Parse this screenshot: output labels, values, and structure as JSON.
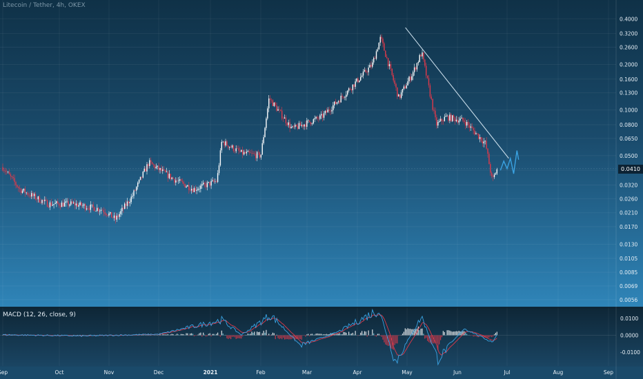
{
  "chart_data": [
    {
      "type": "candlestick",
      "title": "Litecoin / Tether, 4h, OKEX",
      "y_scale": "log",
      "ylim": [
        0.0052,
        0.5
      ],
      "y_ticks": [
        "0.4000",
        "0.3200",
        "0.2600",
        "0.2000",
        "0.1600",
        "0.1300",
        "0.1000",
        "0.0800",
        "0.0650",
        "0.0500",
        "0.0400",
        "0.0320",
        "0.0260",
        "0.0210",
        "0.0170",
        "0.0130",
        "0.0105",
        "0.0085",
        "0.0069",
        "0.0056"
      ],
      "x_ticks": [
        "Sep",
        "Oct",
        "Nov",
        "Dec",
        "2021",
        "Feb",
        "Mar",
        "Apr",
        "May",
        "Jun",
        "Jul",
        "Aug",
        "Sep"
      ],
      "last_price": "0.0410",
      "price_path": [
        {
          "date": "2020-09-01",
          "value": 0.042
        },
        {
          "date": "2020-09-10",
          "value": 0.03
        },
        {
          "date": "2020-09-25",
          "value": 0.024
        },
        {
          "date": "2020-10-10",
          "value": 0.024
        },
        {
          "date": "2020-10-28",
          "value": 0.022
        },
        {
          "date": "2020-11-05",
          "value": 0.019
        },
        {
          "date": "2020-11-15",
          "value": 0.027
        },
        {
          "date": "2020-11-25",
          "value": 0.045
        },
        {
          "date": "2020-12-10",
          "value": 0.035
        },
        {
          "date": "2020-12-22",
          "value": 0.03
        },
        {
          "date": "2021-01-05",
          "value": 0.034
        },
        {
          "date": "2021-01-08",
          "value": 0.062
        },
        {
          "date": "2021-01-20",
          "value": 0.052
        },
        {
          "date": "2021-02-01",
          "value": 0.05
        },
        {
          "date": "2021-02-06",
          "value": 0.12
        },
        {
          "date": "2021-02-20",
          "value": 0.075
        },
        {
          "date": "2021-03-10",
          "value": 0.09
        },
        {
          "date": "2021-03-25",
          "value": 0.13
        },
        {
          "date": "2021-04-10",
          "value": 0.2
        },
        {
          "date": "2021-04-15",
          "value": 0.3
        },
        {
          "date": "2021-04-26",
          "value": 0.12
        },
        {
          "date": "2021-05-05",
          "value": 0.18
        },
        {
          "date": "2021-05-10",
          "value": 0.24
        },
        {
          "date": "2021-05-19",
          "value": 0.08
        },
        {
          "date": "2021-05-25",
          "value": 0.09
        },
        {
          "date": "2021-06-05",
          "value": 0.085
        },
        {
          "date": "2021-06-18",
          "value": 0.06
        },
        {
          "date": "2021-06-22",
          "value": 0.034
        },
        {
          "date": "2021-06-25",
          "value": 0.041
        }
      ],
      "trendline": [
        {
          "date": "2021-04-30",
          "value": 0.35
        },
        {
          "date": "2021-07-02",
          "value": 0.048
        }
      ],
      "projection": [
        {
          "date": "2021-06-27",
          "value": 0.04
        },
        {
          "date": "2021-06-29",
          "value": 0.046
        },
        {
          "date": "2021-07-01",
          "value": 0.041
        },
        {
          "date": "2021-07-03",
          "value": 0.048
        },
        {
          "date": "2021-07-05",
          "value": 0.038
        },
        {
          "date": "2021-07-07",
          "value": 0.054
        },
        {
          "date": "2021-07-08",
          "value": 0.047
        }
      ],
      "colors": {
        "up": "#ffffff",
        "down": "#e0394a",
        "trendline": "#c7dbe8",
        "projection": "#3aa3e3"
      }
    },
    {
      "type": "line",
      "title": "MACD (12, 26, close, 9)",
      "ylim": [
        -0.018,
        0.016
      ],
      "y_ticks": [
        "0.0100",
        "0.0000",
        "-0.0100"
      ],
      "macd_path": [
        {
          "date": "2020-09-01",
          "value": 0.0003
        },
        {
          "date": "2020-10-15",
          "value": -0.0004
        },
        {
          "date": "2020-12-01",
          "value": 0.0006
        },
        {
          "date": "2021-01-08",
          "value": 0.009
        },
        {
          "date": "2021-01-20",
          "value": 0.0002
        },
        {
          "date": "2021-02-07",
          "value": 0.012
        },
        {
          "date": "2021-02-25",
          "value": -0.006
        },
        {
          "date": "2021-03-20",
          "value": 0.002
        },
        {
          "date": "2021-04-14",
          "value": 0.015
        },
        {
          "date": "2021-04-24",
          "value": -0.016
        },
        {
          "date": "2021-05-10",
          "value": 0.011
        },
        {
          "date": "2021-05-20",
          "value": -0.014
        },
        {
          "date": "2021-06-05",
          "value": 0.004
        },
        {
          "date": "2021-06-22",
          "value": -0.004
        },
        {
          "date": "2021-06-25",
          "value": 0.0005
        }
      ],
      "colors": {
        "macd": "#3aa3e3",
        "signal": "#e0394a"
      }
    }
  ]
}
